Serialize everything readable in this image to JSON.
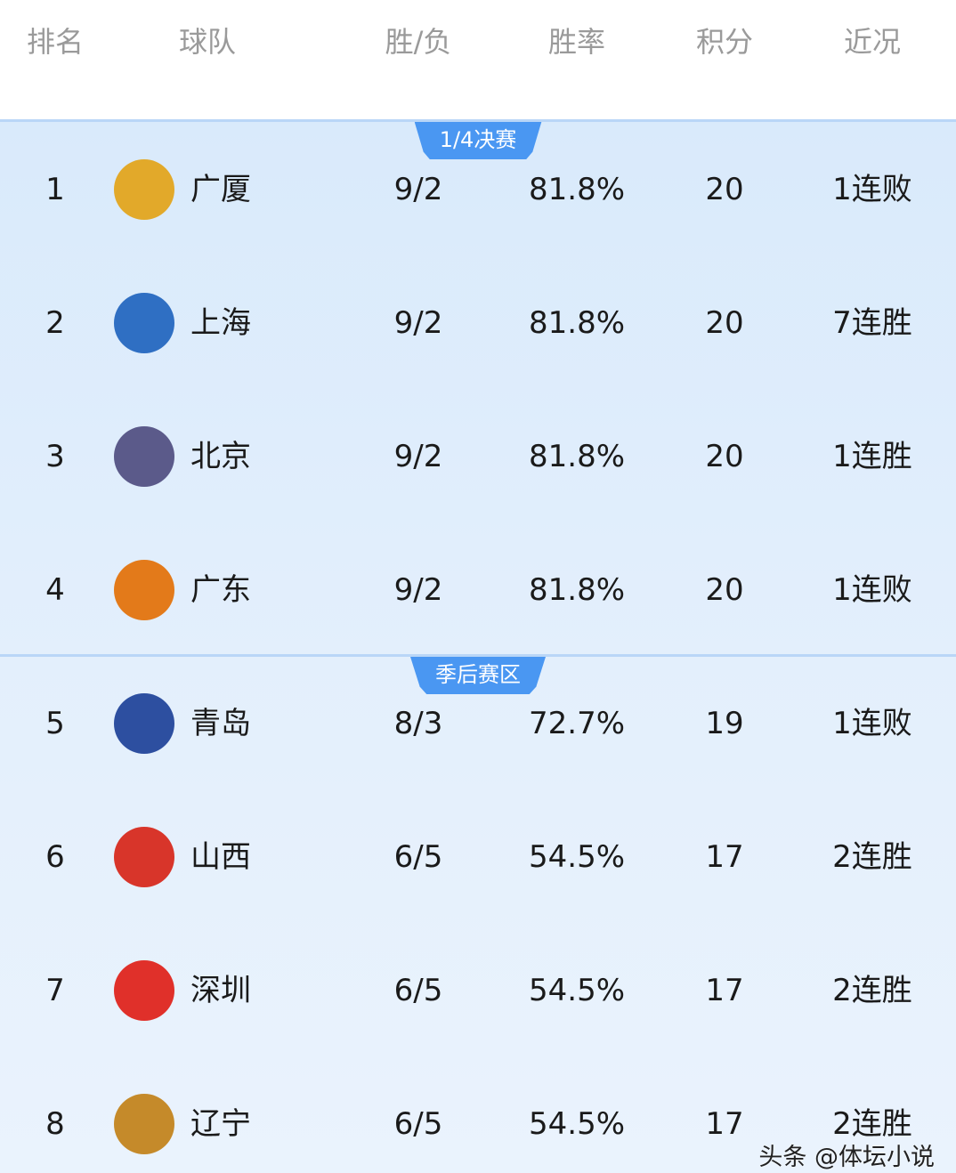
{
  "header": [
    "排名",
    "球队",
    "胜/负",
    "胜率",
    "积分",
    "近况"
  ],
  "sections": [
    {
      "label": "1/4决赛",
      "rows": [
        {
          "rank": "1",
          "team": "广厦",
          "logo": "zhejiang-lion-logo",
          "color": "#e2a92a",
          "wl": "9/2",
          "pct": "81.8%",
          "pts": "20",
          "streak": "1连败"
        },
        {
          "rank": "2",
          "team": "上海",
          "logo": "shanghai-sharks-logo",
          "color": "#2f6fc3",
          "wl": "9/2",
          "pct": "81.8%",
          "pts": "20",
          "streak": "7连胜"
        },
        {
          "rank": "3",
          "team": "北京",
          "logo": "beijing-ducks-logo",
          "color": "#5b5a8a",
          "wl": "9/2",
          "pct": "81.8%",
          "pts": "20",
          "streak": "1连胜"
        },
        {
          "rank": "4",
          "team": "广东",
          "logo": "guangdong-tigers-logo",
          "color": "#e37a1a",
          "wl": "9/2",
          "pct": "81.8%",
          "pts": "20",
          "streak": "1连败"
        }
      ]
    },
    {
      "label": "季后赛区",
      "rows": [
        {
          "rank": "5",
          "team": "青岛",
          "logo": "qingdao-eagles-logo",
          "color": "#2d4fa0",
          "wl": "8/3",
          "pct": "72.7%",
          "pts": "19",
          "streak": "1连败"
        },
        {
          "rank": "6",
          "team": "山西",
          "logo": "shanxi-logo",
          "color": "#d8352a",
          "wl": "6/5",
          "pct": "54.5%",
          "pts": "17",
          "streak": "2连胜"
        },
        {
          "rank": "7",
          "team": "深圳",
          "logo": "shenzhen-leopards-logo",
          "color": "#e0302a",
          "wl": "6/5",
          "pct": "54.5%",
          "pts": "17",
          "streak": "2连胜"
        },
        {
          "rank": "8",
          "team": "辽宁",
          "logo": "liaoning-leopards-logo",
          "color": "#c58a2a",
          "wl": "6/5",
          "pct": "54.5%",
          "pts": "17",
          "streak": "2连胜"
        }
      ]
    }
  ],
  "watermark": "头条 @体坛小说"
}
